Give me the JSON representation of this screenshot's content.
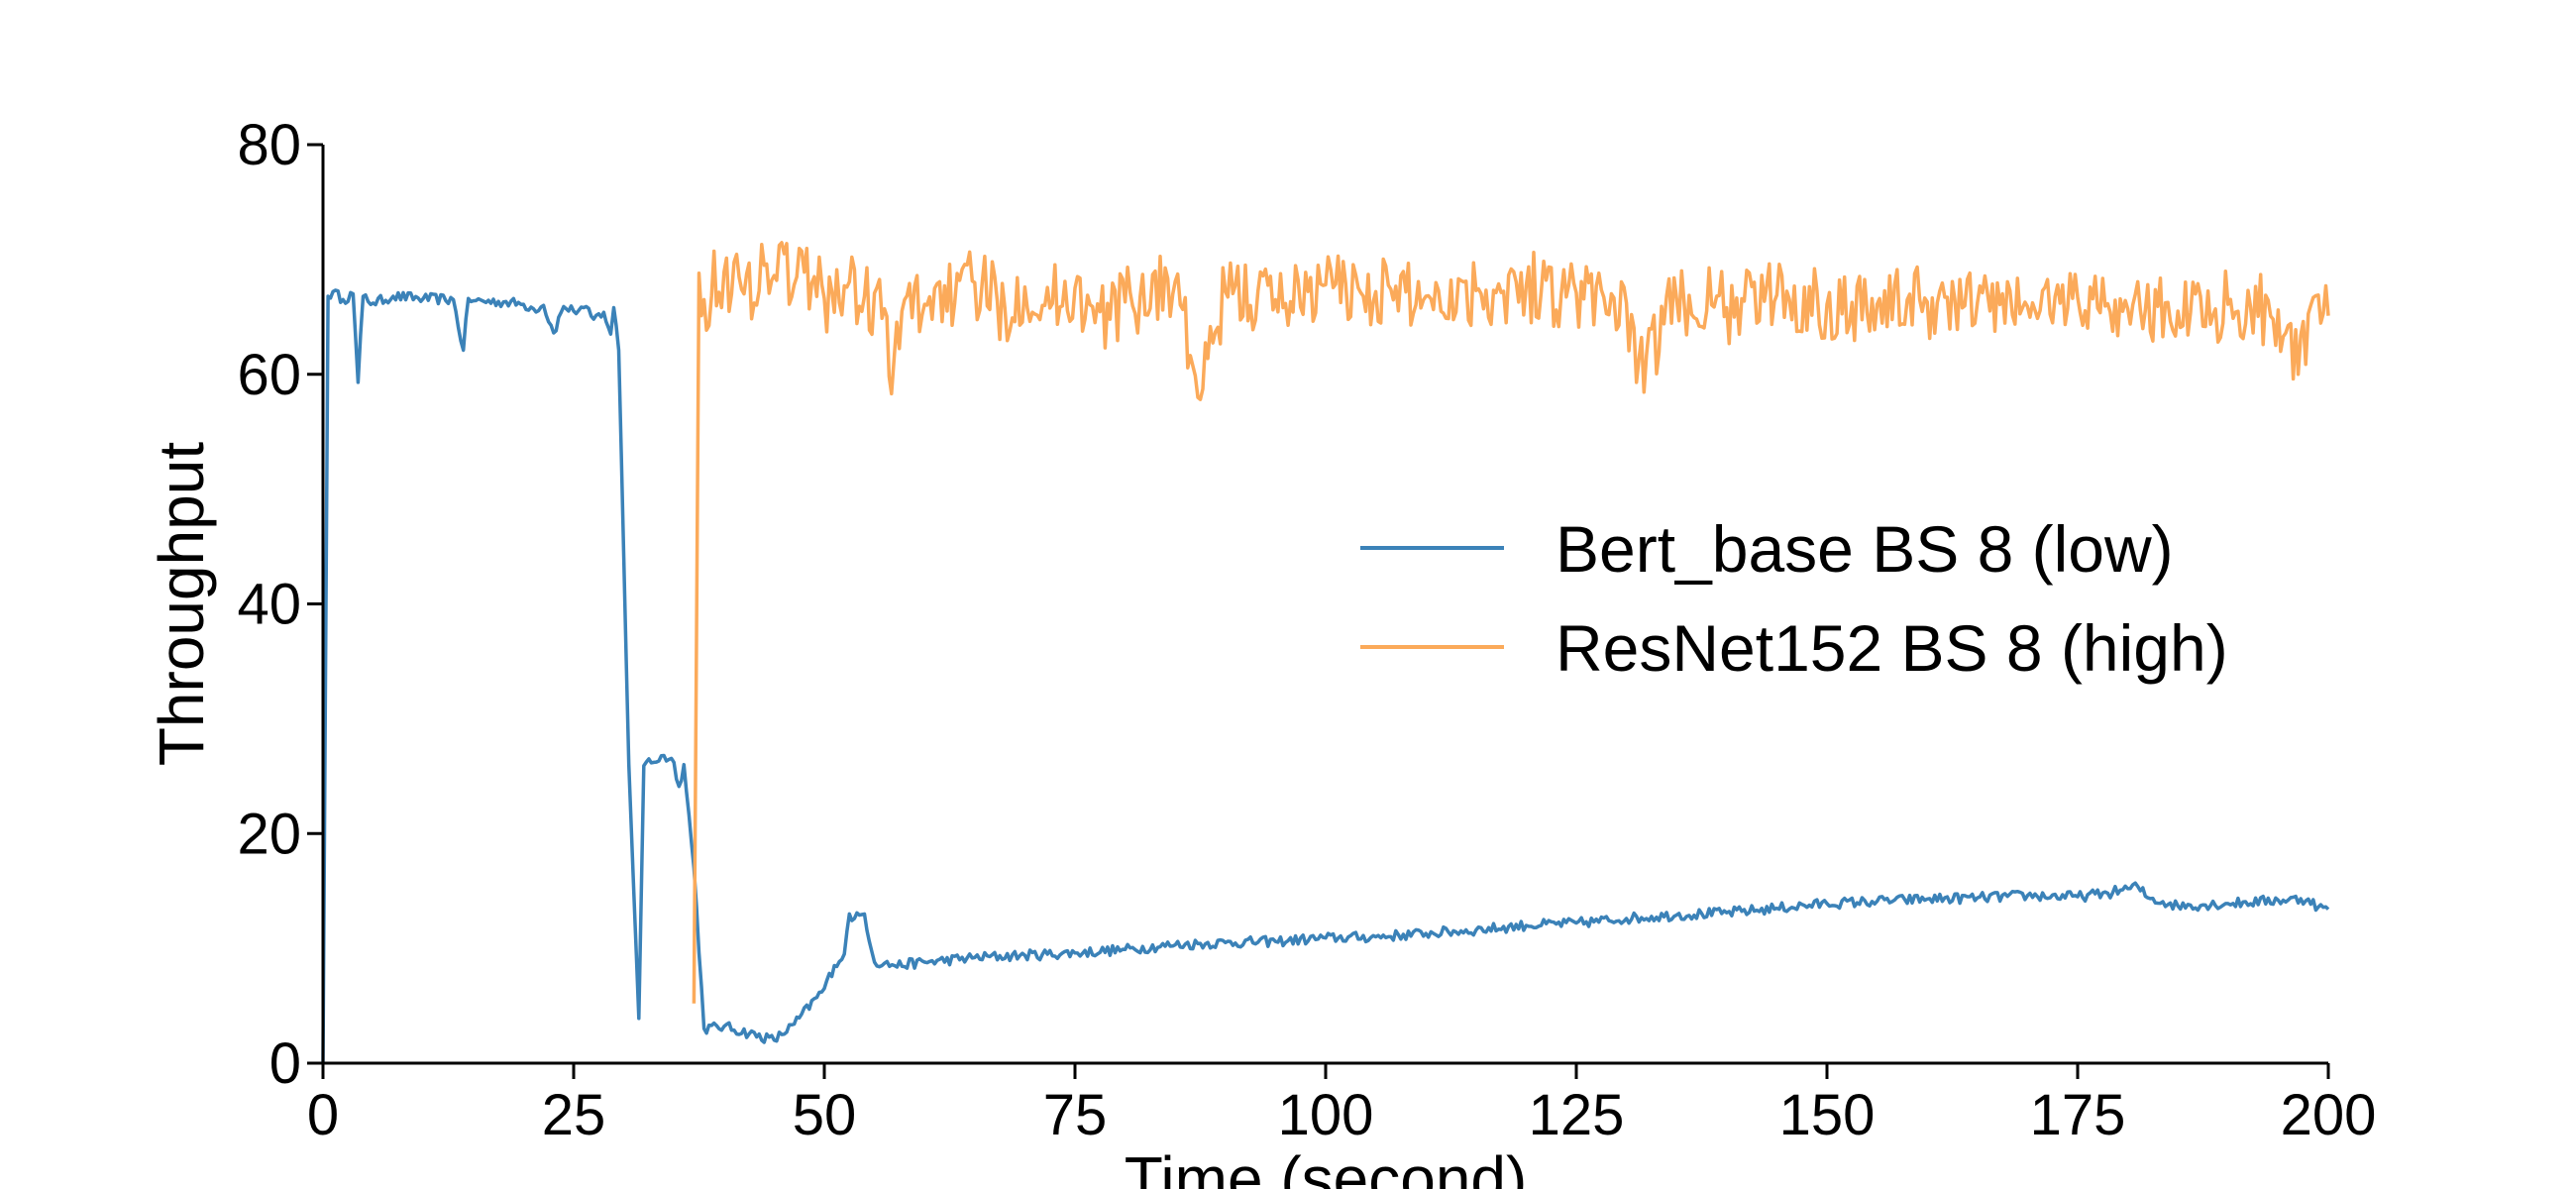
{
  "chart_data": {
    "type": "line",
    "xlabel": "Time (second)",
    "ylabel": "Throughput",
    "xlim": [
      0,
      200
    ],
    "ylim": [
      0,
      80
    ],
    "xticks": [
      0,
      25,
      50,
      75,
      100,
      125,
      150,
      175,
      200
    ],
    "yticks": [
      0,
      20,
      40,
      60,
      80
    ],
    "grid": false,
    "legend_position": "center-right",
    "series": [
      {
        "name": "Bert_base BS 8 (low)",
        "color": "#3b82b8",
        "x": [
          0,
          0.5,
          1,
          2,
          3,
          3.5,
          4,
          5,
          7,
          10,
          13,
          14,
          14.5,
          15,
          18,
          20,
          21,
          22,
          23,
          24,
          25,
          26,
          27,
          28,
          28.7,
          29,
          29.5,
          30.5,
          31.5,
          32,
          32.5,
          33,
          34,
          35,
          35.5,
          36,
          37,
          38,
          40,
          45,
          47,
          50,
          51,
          52,
          52.5,
          53,
          54,
          55,
          56,
          57,
          60,
          65,
          70,
          75,
          80,
          85,
          90,
          95,
          100,
          105,
          110,
          115,
          120,
          125,
          130,
          135,
          140,
          145,
          150,
          155,
          160,
          165,
          170,
          175,
          178,
          180,
          181,
          182,
          185,
          190,
          195,
          198,
          199,
          200
        ],
        "y": [
          0,
          66.8,
          67.2,
          66.5,
          67,
          59.3,
          66.8,
          66.2,
          66.8,
          66.6,
          66.5,
          62.1,
          66.6,
          66.4,
          66.3,
          66.1,
          65.7,
          66,
          63.6,
          65.9,
          65.5,
          65.8,
          64.8,
          65.4,
          63.5,
          65.8,
          62.1,
          26,
          3.9,
          25.9,
          26.5,
          26.2,
          26.8,
          26.2,
          24.1,
          26,
          17,
          3,
          3.2,
          2,
          3.4,
          6.5,
          8.5,
          9.5,
          13,
          12.6,
          13,
          8.8,
          8.7,
          8.5,
          8.8,
          9.2,
          9.4,
          9.6,
          9.9,
          10.3,
          10.5,
          10.6,
          10.9,
          11,
          11.3,
          11.6,
          12,
          12.2,
          12.6,
          12.9,
          13.1,
          13.5,
          13.9,
          14.1,
          14.3,
          14.4,
          14.6,
          14.5,
          14.8,
          15.2,
          15.4,
          14.4,
          13.7,
          13.9,
          14.2,
          14.3,
          13.6,
          13.4
        ]
      },
      {
        "name": "ResNet152 BS 8 (high)",
        "color": "#fbaa5a",
        "x": [
          37,
          37.5,
          38,
          40,
          42,
          44,
          45,
          46,
          47,
          48,
          50,
          52,
          54,
          56,
          56.7,
          58,
          60,
          62,
          63,
          65,
          68,
          70,
          72,
          75,
          77,
          80,
          85,
          87.5,
          90,
          95,
          100,
          105,
          110,
          115,
          120,
          125,
          130,
          131,
          135,
          140,
          145,
          150,
          155,
          160,
          165,
          170,
          175,
          180,
          185,
          190,
          195,
          197,
          199,
          200
        ],
        "y": [
          5.2,
          68.8,
          66.5,
          68.9,
          67,
          69.5,
          68.6,
          70.5,
          67.8,
          68.9,
          66.6,
          67.7,
          66.8,
          65.7,
          58.3,
          66.5,
          66.1,
          67.7,
          66.2,
          68,
          65.8,
          67.6,
          66,
          67.5,
          64.5,
          66.3,
          68.1,
          57.8,
          67.2,
          66.5,
          67.8,
          67.2,
          66.8,
          67.3,
          67.7,
          67.1,
          66.2,
          59.3,
          66.6,
          65.8,
          66.9,
          66.1,
          66.1,
          66.3,
          66.2,
          65.9,
          66.7,
          65.7,
          65.5,
          66.1,
          65.6,
          60,
          66.9,
          65.1
        ]
      }
    ]
  }
}
